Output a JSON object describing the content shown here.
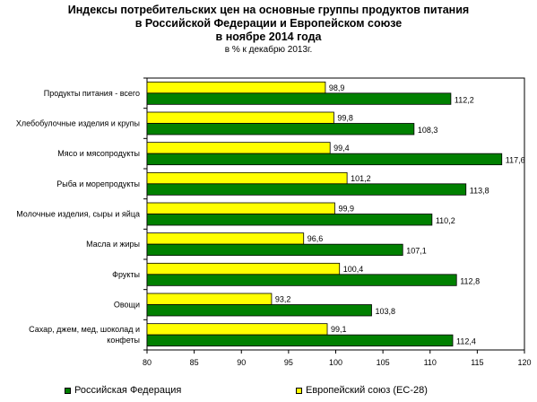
{
  "chart_data": {
    "type": "bar",
    "orientation": "horizontal",
    "title_lines": [
      "Индексы потребительских цен на основные группы продуктов питания",
      "в Российской Федерации и Европейском союзе",
      "в ноябре 2014 года"
    ],
    "subtitle": "в % к декабрю 2013г.",
    "categories": [
      "Продукты питания - всего",
      "Хлебобулочные изделия и крупы",
      "Мясо и мясопродукты",
      "Рыба и морепродукты",
      "Молочные изделия, сыры и яйца",
      "Масла и жиры",
      "Фрукты",
      "Овощи",
      "Сахар, джем, мед, шоколад и конфеты"
    ],
    "category_lines": [
      [
        "Продукты питания - всего"
      ],
      [
        "Хлебобулочные изделия и крупы"
      ],
      [
        "Мясо и мясопродукты"
      ],
      [
        "Рыба и морепродукты"
      ],
      [
        "Молочные изделия, сыры и яйца"
      ],
      [
        "Масла и жиры"
      ],
      [
        "Фрукты"
      ],
      [
        "Овощи"
      ],
      [
        "Сахар, джем, мед, шоколад и",
        "конфеты"
      ]
    ],
    "series": [
      {
        "name": "Европейский союз (ЕС-28)",
        "color": "#ffff00",
        "values": [
          98.9,
          99.8,
          99.4,
          101.2,
          99.9,
          96.6,
          100.4,
          93.2,
          99.1
        ],
        "labels": [
          "98,9",
          "99,8",
          "99,4",
          "101,2",
          "99,9",
          "96,6",
          "100,4",
          "93,2",
          "99,1"
        ]
      },
      {
        "name": "Российская Федерация",
        "color": "#008000",
        "values": [
          112.2,
          108.3,
          117.6,
          113.8,
          110.2,
          107.1,
          112.8,
          103.8,
          112.4
        ],
        "labels": [
          "112,2",
          "108,3",
          "117,6",
          "113,8",
          "110,2",
          "107,1",
          "112,8",
          "103,8",
          "112,4"
        ]
      }
    ],
    "xlim": [
      80,
      120
    ],
    "xticks": [
      80,
      85,
      90,
      95,
      100,
      105,
      110,
      115,
      120
    ],
    "xtick_labels": [
      "80",
      "85",
      "90",
      "95",
      "100",
      "105",
      "110",
      "115",
      "120"
    ],
    "grid": false,
    "legend_position": "bottom",
    "legend_order": [
      "Российская Федерация",
      "Европейский союз (ЕС-28)"
    ]
  }
}
